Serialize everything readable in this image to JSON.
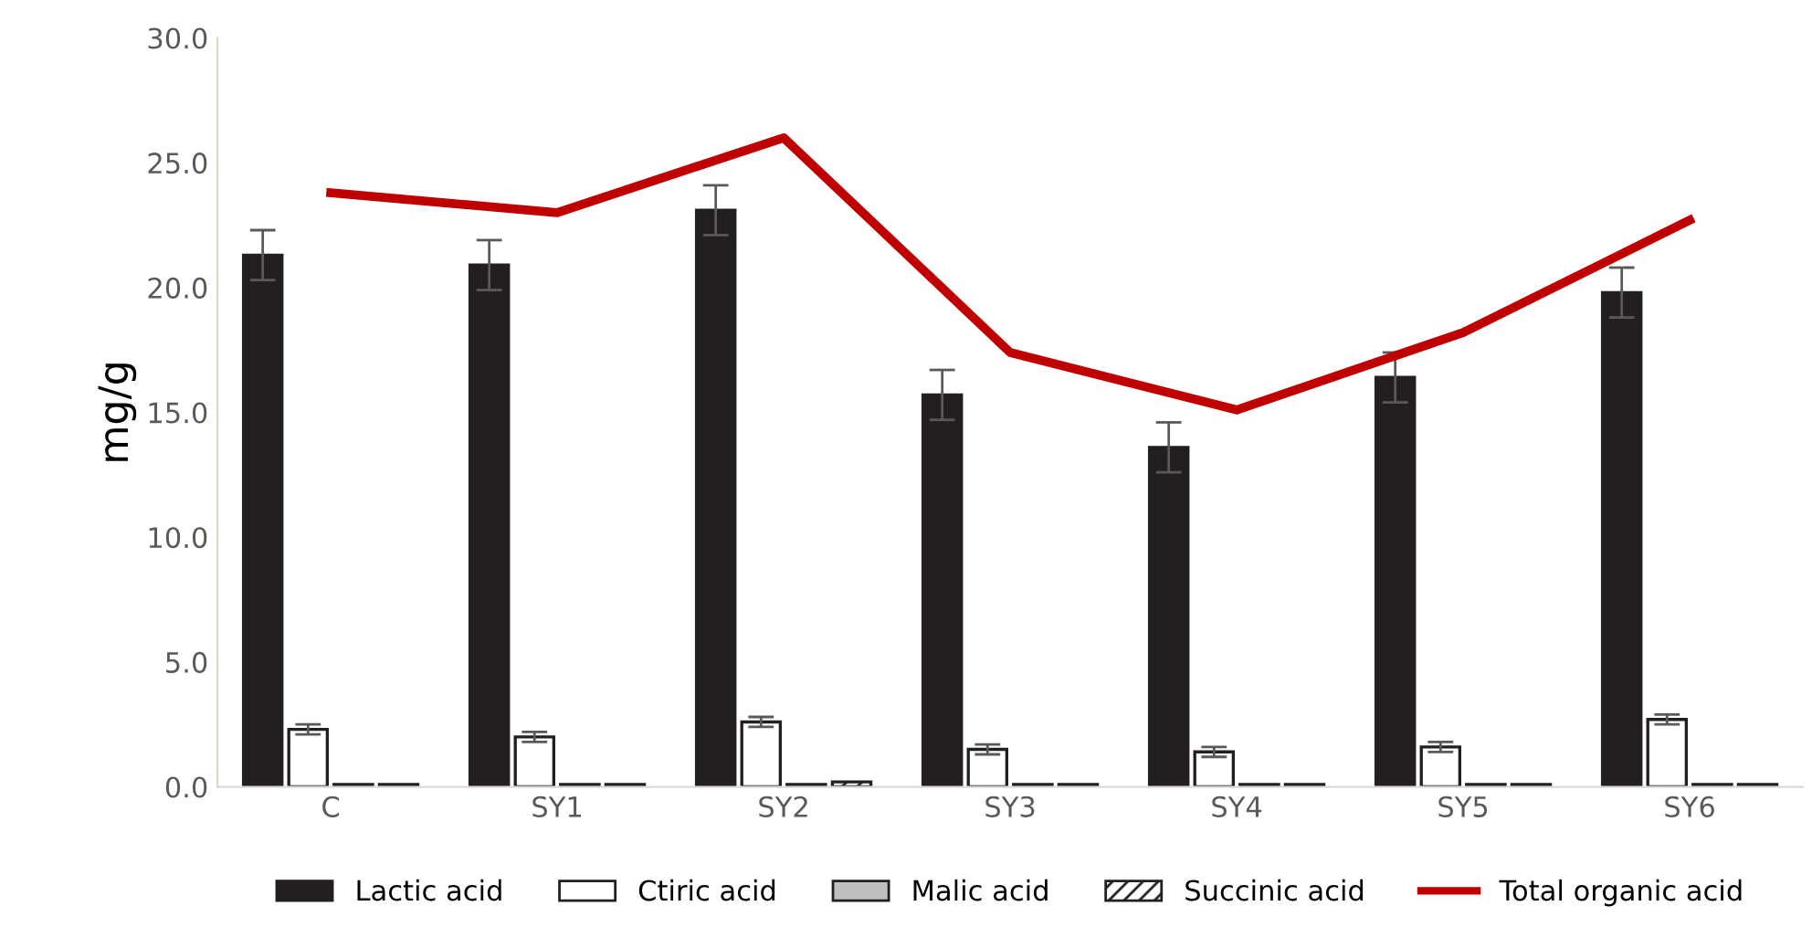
{
  "chart_data": {
    "type": "bar",
    "ylabel": "mg/g",
    "categories": [
      "C",
      "SY1",
      "SY2",
      "SY3",
      "SY4",
      "SY5",
      "SY6"
    ],
    "ylim": [
      0,
      30
    ],
    "yticks": [
      {
        "value": 0,
        "label": "0.0"
      },
      {
        "value": 5,
        "label": "5.0"
      },
      {
        "value": 10,
        "label": "10.0"
      },
      {
        "value": 15,
        "label": "15.0"
      },
      {
        "value": 20,
        "label": "20.0"
      },
      {
        "value": 25,
        "label": "25.0"
      },
      {
        "value": 30,
        "label": "30.0"
      }
    ],
    "grid": false,
    "legend": "bottom",
    "series": [
      {
        "name": "Lactic acid",
        "color": "#231f20",
        "values": [
          21.3,
          20.9,
          23.1,
          15.7,
          13.6,
          16.4,
          19.8
        ],
        "errors": [
          1.0,
          1.0,
          1.0,
          1.0,
          1.0,
          1.0,
          1.0
        ]
      },
      {
        "name": "Ctiric acid",
        "color": "#ffffff",
        "values": [
          2.3,
          2.0,
          2.6,
          1.5,
          1.4,
          1.6,
          2.7
        ],
        "errors": [
          0.2,
          0.2,
          0.2,
          0.2,
          0.2,
          0.2,
          0.2
        ]
      },
      {
        "name": "Malic acid",
        "color": "#bfbfbf",
        "values": [
          0.1,
          0.1,
          0.1,
          0.1,
          0.1,
          0.1,
          0.1
        ]
      },
      {
        "name": "Succinic acid",
        "color": "#231f20",
        "values": [
          0.1,
          0.1,
          0.2,
          0.1,
          0.1,
          0.1,
          0.1
        ]
      },
      {
        "name": "Total organic acid",
        "type": "line",
        "color": "#c00000",
        "values": [
          23.8,
          23.0,
          26.0,
          17.4,
          15.1,
          18.2,
          22.7
        ],
        "marker": "none",
        "line_style": "solid"
      }
    ]
  }
}
